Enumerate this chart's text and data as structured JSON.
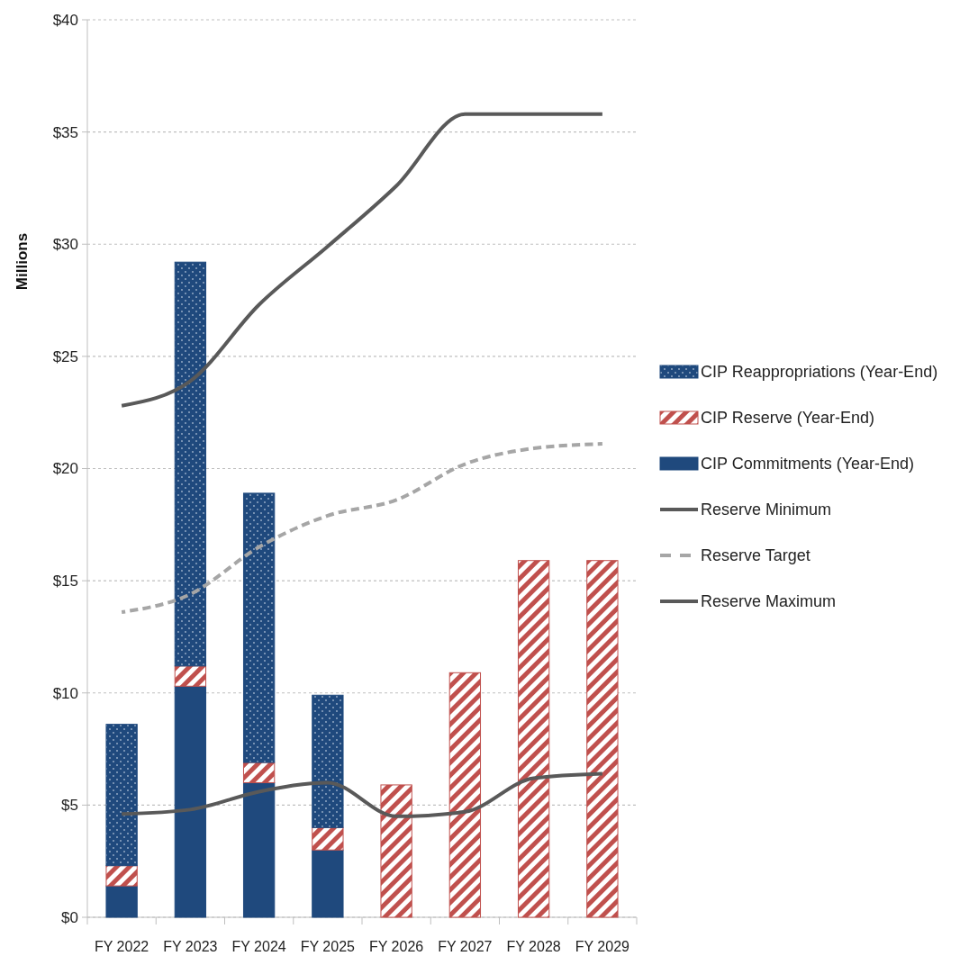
{
  "chart_data": {
    "type": "bar",
    "stacked": true,
    "ylabel": "Millions",
    "categories": [
      "FY 2022",
      "FY 2023",
      "FY 2024",
      "FY 2025",
      "FY 2026",
      "FY 2027",
      "FY 2028",
      "FY 2029"
    ],
    "series": [
      {
        "name": "CIP Commitments (Year-End)",
        "color": "#1f497d",
        "values": [
          1.4,
          10.3,
          6.0,
          3.0,
          0,
          0,
          0,
          0
        ]
      },
      {
        "name": "CIP Reserve (Year-End)",
        "color": "#c0504d",
        "values": [
          0.9,
          0.9,
          0.9,
          1.0,
          5.9,
          10.9,
          15.9,
          15.9
        ]
      },
      {
        "name": "CIP Reappropriations (Year-End)",
        "color": "#1f497d",
        "values": [
          6.3,
          18.0,
          12.0,
          5.9,
          0,
          0,
          0,
          0
        ]
      },
      {
        "name": "Reserve Minimum",
        "type": "line",
        "color": "#595959",
        "line_style": "solid",
        "values": [
          4.6,
          4.8,
          5.6,
          6.0,
          4.5,
          4.7,
          6.2,
          6.4
        ]
      },
      {
        "name": "Reserve Target",
        "type": "line",
        "color": "#a6a6a6",
        "line_style": "dashed",
        "values": [
          13.6,
          14.4,
          16.5,
          17.9,
          18.6,
          20.2,
          20.9,
          21.1
        ]
      },
      {
        "name": "Reserve Maximum",
        "type": "line",
        "color": "#595959",
        "line_style": "solid",
        "values": [
          22.8,
          23.9,
          27.3,
          29.9,
          32.6,
          35.8,
          35.8,
          35.8
        ]
      }
    ],
    "ylim": [
      0,
      40
    ],
    "yticks": [
      {
        "value": 0,
        "label": "$0"
      },
      {
        "value": 5,
        "label": "$5"
      },
      {
        "value": 10,
        "label": "$10"
      },
      {
        "value": 15,
        "label": "$15"
      },
      {
        "value": 20,
        "label": "$20"
      },
      {
        "value": 25,
        "label": "$25"
      },
      {
        "value": 30,
        "label": "$30"
      },
      {
        "value": 35,
        "label": "$35"
      },
      {
        "value": 40,
        "label": "$40"
      }
    ],
    "grid": "y",
    "legend": "right"
  }
}
